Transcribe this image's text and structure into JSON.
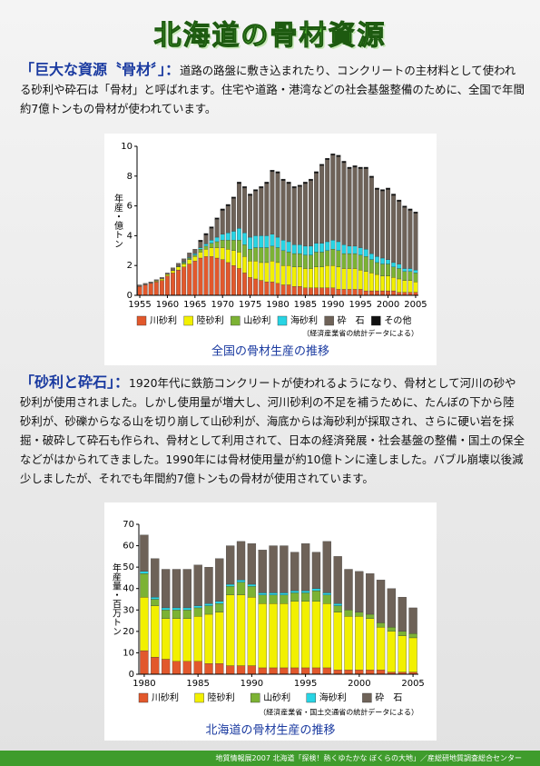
{
  "title": "北海道の骨材資源",
  "paragraphs": [
    {
      "heading": "「巨大な資源〝骨材〞」：",
      "text": "道路の路盤に敷き込まれたり、コンクリートの主材料として使われる砂利や砕石は「骨材」と呼ばれます。住宅や道路・港湾などの社会基盤整備のために、全国で年間約7億トンもの骨材が使われています。"
    },
    {
      "heading": "「砂利と砕石」：",
      "text": "1920年代に鉄筋コンクリートが使われるようになり、骨材として河川の砂や砂利が使用されました。しかし使用量が増大し、河川砂利の不足を補うために、たんぼの下から陸砂利が、砂礫からなる山を切り崩して山砂利が、海底からは海砂利が採取され、さらに硬い岩を採掘・破砕して砕石も作られ、骨材として利用されて、日本の経済発展・社会基盤の整備・国土の保全などがはかられてきました。1990年には骨材使用量が約10億トンに達しました。バブル崩壊以後減少しましたが、それでも年間約7億トンもの骨材が使用されています。"
    }
  ],
  "chart_data": [
    {
      "type": "stacked-bar",
      "caption": "全国の骨材生産の推移",
      "ylabel": "年産・億トン",
      "note": "（経済産業省の統計データによる）",
      "x": [
        1955,
        1956,
        1957,
        1958,
        1959,
        1960,
        1961,
        1962,
        1963,
        1964,
        1965,
        1966,
        1967,
        1968,
        1969,
        1970,
        1971,
        1972,
        1973,
        1974,
        1975,
        1976,
        1977,
        1978,
        1979,
        1980,
        1981,
        1982,
        1983,
        1984,
        1985,
        1986,
        1987,
        1988,
        1989,
        1990,
        1991,
        1992,
        1993,
        1994,
        1995,
        1996,
        1997,
        1998,
        1999,
        2000,
        2001,
        2002,
        2003,
        2004,
        2005
      ],
      "xlim": [
        1954.5,
        2005.5
      ],
      "xticks": [
        1955,
        1960,
        1965,
        1970,
        1975,
        1980,
        1985,
        1990,
        1995,
        2000,
        2005
      ],
      "ylim": [
        0,
        10
      ],
      "yticks": [
        0,
        2,
        4,
        6,
        8,
        10
      ],
      "series": [
        {
          "name": "川砂利",
          "color": "#e2582c",
          "values": [
            0.6,
            0.7,
            0.8,
            0.9,
            1.0,
            1.3,
            1.5,
            1.7,
            1.9,
            2.1,
            2.3,
            2.5,
            2.6,
            2.6,
            2.5,
            2.4,
            2.2,
            2.0,
            1.8,
            1.5,
            1.2,
            1.1,
            1.0,
            0.9,
            0.9,
            0.8,
            0.7,
            0.7,
            0.6,
            0.6,
            0.5,
            0.5,
            0.5,
            0.5,
            0.5,
            0.5,
            0.4,
            0.4,
            0.4,
            0.4,
            0.4,
            0.3,
            0.3,
            0.3,
            0.3,
            0.3,
            0.3,
            0.2,
            0.2,
            0.2,
            0.2
          ]
        },
        {
          "name": "陸砂利",
          "color": "#f2f000",
          "values": [
            0,
            0,
            0,
            0.05,
            0.1,
            0.1,
            0.15,
            0.2,
            0.2,
            0.3,
            0.3,
            0.4,
            0.5,
            0.6,
            0.7,
            0.8,
            0.9,
            1.0,
            1.1,
            1.1,
            1.1,
            1.2,
            1.2,
            1.3,
            1.4,
            1.4,
            1.3,
            1.3,
            1.3,
            1.3,
            1.3,
            1.3,
            1.4,
            1.4,
            1.5,
            1.5,
            1.5,
            1.4,
            1.4,
            1.4,
            1.3,
            1.3,
            1.2,
            1.1,
            1.0,
            1.0,
            0.9,
            0.9,
            0.8,
            0.8,
            0.7
          ]
        },
        {
          "name": "山砂利",
          "color": "#7cb234",
          "values": [
            0,
            0,
            0,
            0,
            0,
            0,
            0,
            0.05,
            0.1,
            0.1,
            0.1,
            0.2,
            0.2,
            0.3,
            0.4,
            0.5,
            0.6,
            0.7,
            0.8,
            0.8,
            0.8,
            0.9,
            1.0,
            1.0,
            1.0,
            1.0,
            1.0,
            0.9,
            0.9,
            0.9,
            0.9,
            0.9,
            1.0,
            1.0,
            1.0,
            1.1,
            1.1,
            1.0,
            1.0,
            1.0,
            1.0,
            1.0,
            0.9,
            0.8,
            0.8,
            0.8,
            0.7,
            0.7,
            0.6,
            0.6,
            0.6
          ]
        },
        {
          "name": "海砂利",
          "color": "#28d4e4",
          "values": [
            0,
            0,
            0,
            0,
            0,
            0,
            0,
            0,
            0.05,
            0.05,
            0.1,
            0.1,
            0.15,
            0.2,
            0.3,
            0.4,
            0.5,
            0.6,
            0.8,
            0.8,
            0.8,
            0.8,
            0.8,
            0.8,
            0.8,
            0.7,
            0.7,
            0.7,
            0.6,
            0.6,
            0.6,
            0.6,
            0.6,
            0.6,
            0.6,
            0.6,
            0.6,
            0.6,
            0.5,
            0.5,
            0.5,
            0.5,
            0.4,
            0.4,
            0.4,
            0.3,
            0.3,
            0.3,
            0.2,
            0.2,
            0.2
          ]
        },
        {
          "name": "砕　石",
          "color": "#6e6258",
          "values": [
            0.1,
            0.1,
            0.1,
            0.1,
            0.1,
            0.1,
            0.2,
            0.2,
            0.2,
            0.3,
            0.3,
            0.4,
            0.6,
            0.8,
            1.2,
            1.6,
            1.8,
            2.2,
            3.0,
            3.0,
            2.8,
            3.0,
            3.2,
            3.5,
            4.2,
            4.3,
            4.0,
            3.9,
            3.8,
            3.9,
            4.2,
            4.4,
            4.7,
            5.2,
            5.5,
            5.7,
            5.7,
            5.5,
            5.2,
            5.3,
            5.3,
            5.4,
            5.1,
            4.5,
            4.5,
            4.7,
            4.5,
            4.2,
            4.1,
            3.9,
            3.8
          ]
        },
        {
          "name": "その他",
          "color": "#111111",
          "values": [
            0,
            0,
            0,
            0,
            0,
            0,
            0,
            0,
            0,
            0,
            0,
            0.1,
            0.1,
            0.1,
            0.1,
            0.1,
            0.1,
            0.1,
            0.1,
            0.1,
            0.1,
            0.1,
            0.1,
            0.1,
            0.1,
            0.1,
            0.1,
            0.1,
            0.1,
            0.1,
            0.1,
            0.1,
            0.1,
            0.1,
            0.1,
            0.1,
            0.1,
            0.1,
            0.1,
            0.1,
            0.1,
            0.1,
            0.1,
            0.1,
            0.1,
            0.1,
            0.1,
            0.1,
            0.1,
            0.1,
            0.1
          ]
        }
      ]
    },
    {
      "type": "stacked-bar",
      "caption": "北海道の骨材生産の推移",
      "ylabel": "年産量・百万トン",
      "note": "（経済産業省・国土交通省の統計データによる）",
      "x": [
        1980,
        1981,
        1982,
        1983,
        1984,
        1985,
        1986,
        1987,
        1988,
        1989,
        1990,
        1991,
        1992,
        1993,
        1994,
        1995,
        1996,
        1997,
        1998,
        1999,
        2000,
        2001,
        2002,
        2003,
        2004,
        2005
      ],
      "xlim": [
        1979.5,
        2005.5
      ],
      "xticks": [
        1980,
        1985,
        1990,
        1995,
        2000,
        2005
      ],
      "ylim": [
        0,
        70
      ],
      "yticks": [
        0,
        10,
        20,
        30,
        40,
        50,
        60,
        70
      ],
      "series": [
        {
          "name": "川砂利",
          "color": "#e2582c",
          "values": [
            11,
            8,
            7,
            6,
            6,
            6,
            5,
            5,
            4,
            4,
            4,
            3,
            3,
            3,
            3,
            3,
            3,
            3,
            2,
            2,
            2,
            2,
            2,
            1,
            1,
            1
          ]
        },
        {
          "name": "陸砂利",
          "color": "#f2f000",
          "values": [
            25,
            24,
            19,
            20,
            20,
            21,
            23,
            24,
            33,
            33,
            32,
            30,
            30,
            30,
            31,
            31,
            31,
            30,
            27,
            25,
            25,
            24,
            20,
            19,
            17,
            16
          ]
        },
        {
          "name": "山砂利",
          "color": "#7cb234",
          "values": [
            11,
            3,
            4,
            4,
            4,
            4,
            4,
            4,
            4,
            6,
            5,
            4,
            4,
            4,
            4,
            4,
            5,
            4,
            3,
            3,
            2,
            2,
            2,
            2,
            2,
            2
          ]
        },
        {
          "name": "海砂利",
          "color": "#28d4e4",
          "values": [
            1,
            1,
            1,
            1,
            1,
            1,
            1,
            1,
            1,
            1,
            1,
            1,
            1,
            1,
            1,
            1,
            1,
            1,
            1,
            0,
            0,
            0,
            0,
            0,
            0,
            0
          ]
        },
        {
          "name": "砕　石",
          "color": "#6e6258",
          "values": [
            17,
            18,
            18,
            18,
            18,
            19,
            17,
            20,
            18,
            18,
            19,
            20,
            22,
            22,
            18,
            22,
            17,
            24,
            22,
            19,
            19,
            19,
            20,
            18,
            16,
            12
          ]
        }
      ]
    }
  ],
  "footer": "地質情報展2007 北海道「探検！熱くゆたかな ぼくらの大地」／産総研地質調査総合センター"
}
